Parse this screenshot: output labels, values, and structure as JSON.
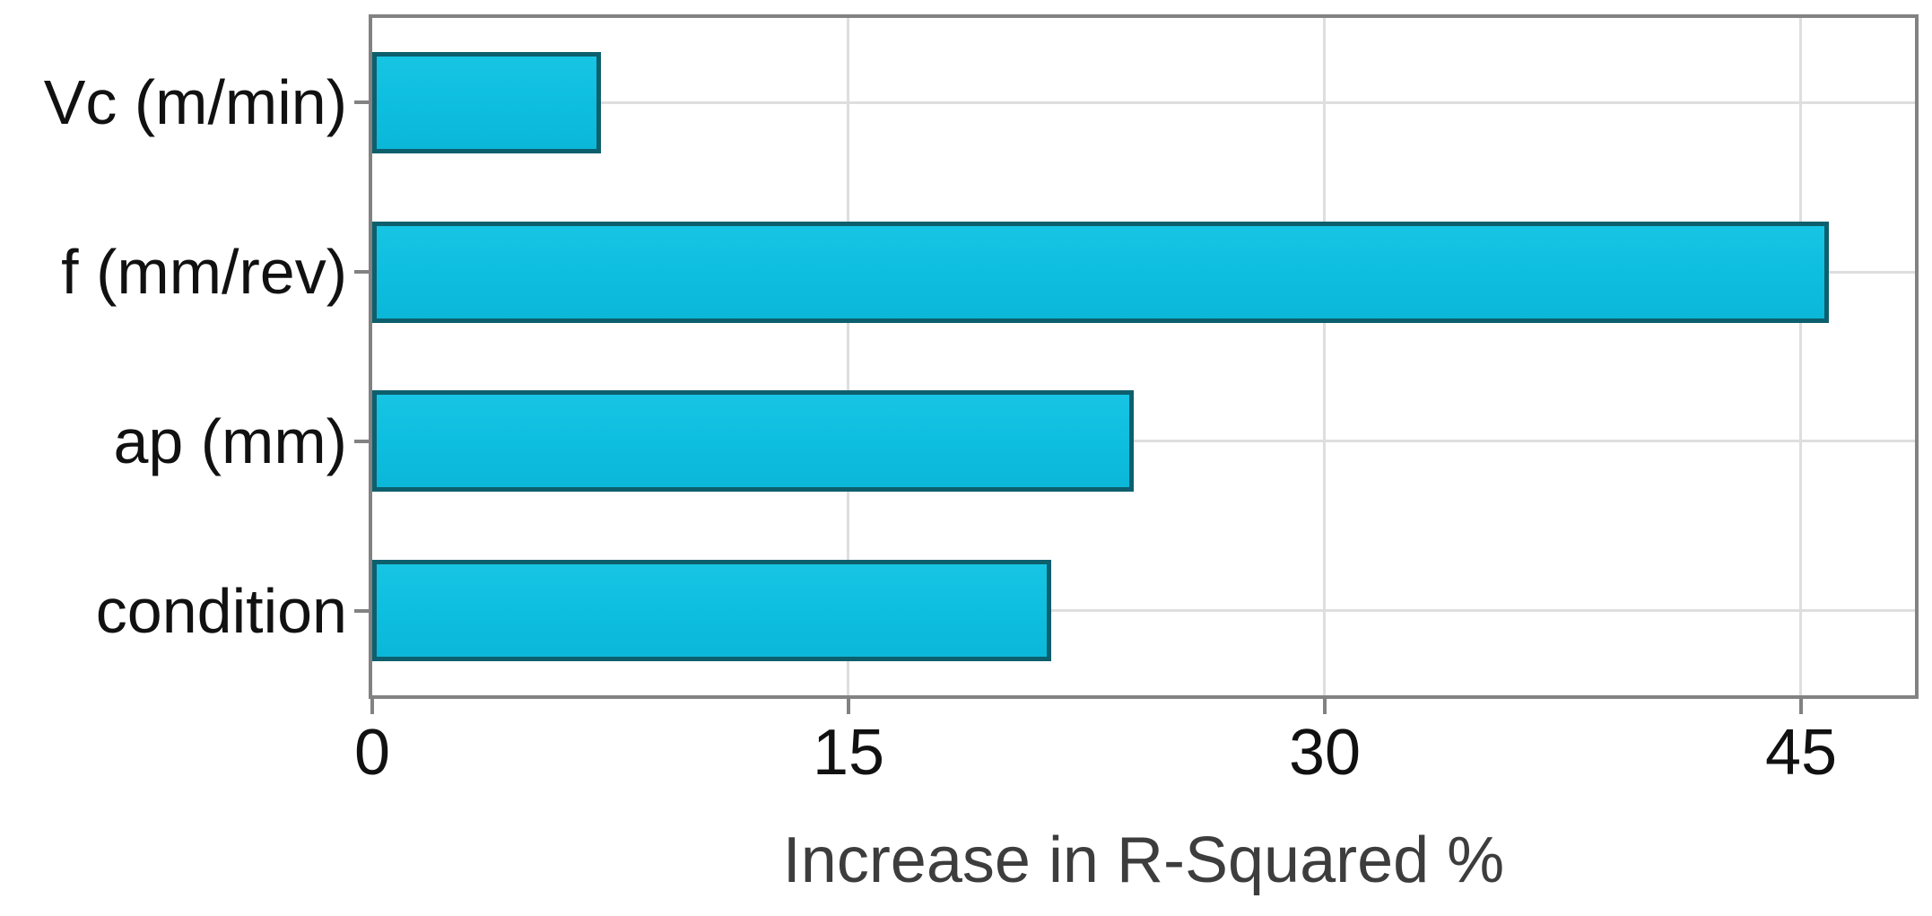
{
  "chart_data": {
    "type": "bar",
    "orientation": "horizontal",
    "title": "",
    "xlabel": "Increase in R-Squared %",
    "ylabel": "",
    "categories": [
      "Vc (m/min)",
      "f (mm/rev)",
      "ap (mm)",
      "condition"
    ],
    "values": [
      7.2,
      45.9,
      24.0,
      21.4
    ],
    "xticks": [
      0,
      15,
      30,
      45
    ],
    "xlim": [
      0,
      48.6
    ],
    "grid": true,
    "legend": false,
    "colors": {
      "bar_fill": "#0ebede",
      "bar_fill_light": "#17c4e4",
      "bar_fill_dark": "#0bb7d8",
      "bar_border": "#0d5f6d",
      "axis": "#828282",
      "grid": "#dedede",
      "tick_label": "#111111",
      "xlabel": "#3d3d3d",
      "background": "#ffffff"
    }
  }
}
